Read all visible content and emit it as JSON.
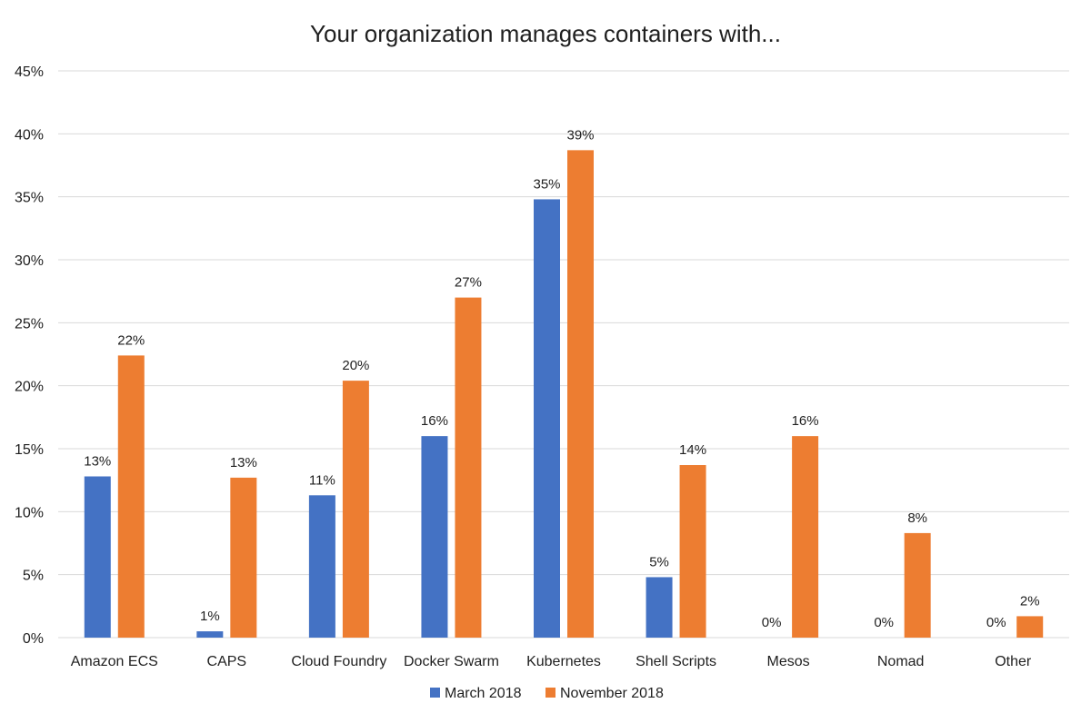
{
  "chart_data": {
    "type": "bar",
    "title": "Your organization manages containers with...",
    "xlabel": "",
    "ylabel": "",
    "ylim": [
      0,
      45
    ],
    "yticks": [
      0,
      5,
      10,
      15,
      20,
      25,
      30,
      35,
      40,
      45
    ],
    "ytick_suffix": "%",
    "grid": true,
    "legend_position": "bottom",
    "categories": [
      "Amazon ECS",
      "CAPS",
      "Cloud Foundry",
      "Docker Swarm",
      "Kubernetes",
      "Shell Scripts",
      "Mesos",
      "Nomad",
      "Other"
    ],
    "series": [
      {
        "name": "March 2018",
        "color": "#4472C4",
        "values": [
          12.8,
          0.5,
          11.3,
          16.0,
          34.8,
          4.8,
          0,
          0,
          0
        ],
        "labels": [
          "13%",
          "1%",
          "11%",
          "16%",
          "35%",
          "5%",
          "0%",
          "0%",
          "0%"
        ]
      },
      {
        "name": "November 2018",
        "color": "#ED7D31",
        "values": [
          22.4,
          12.7,
          20.4,
          27.0,
          38.7,
          13.7,
          16.0,
          8.3,
          1.7
        ],
        "labels": [
          "22%",
          "13%",
          "20%",
          "27%",
          "39%",
          "14%",
          "16%",
          "8%",
          "2%"
        ]
      }
    ]
  }
}
